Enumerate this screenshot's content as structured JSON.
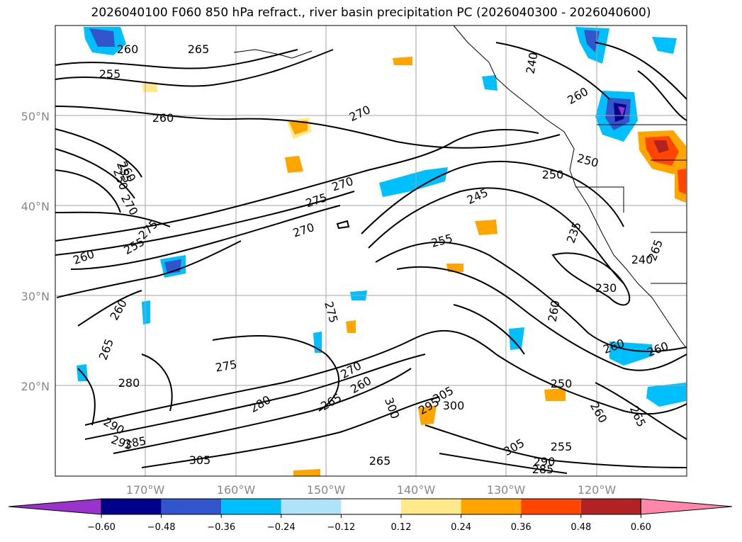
{
  "title": "2026040100 F060 850 hPa refract., river basin precipitation PC (2026040300 - 2026040600)",
  "map": {
    "lat_labels": [
      "50°N",
      "40°N",
      "30°N",
      "20°N"
    ],
    "lon_labels": [
      "170°W",
      "160°W",
      "150°W",
      "140°W",
      "130°W",
      "120°W"
    ],
    "contour_labels": [
      "260",
      "255",
      "260",
      "265",
      "270",
      "275",
      "270",
      "260",
      "255",
      "250",
      "260",
      "270",
      "275",
      "255",
      "260",
      "265",
      "280",
      "275",
      "270",
      "275",
      "270",
      "260",
      "265",
      "280",
      "290",
      "295",
      "285",
      "305",
      "300",
      "295",
      "305",
      "300",
      "305",
      "290",
      "285",
      "255",
      "265",
      "250",
      "260",
      "265",
      "245",
      "240",
      "260",
      "250",
      "235",
      "250",
      "240",
      "230",
      "260"
    ]
  },
  "colorbar": {
    "colors": [
      "#9933cc",
      "#00008b",
      "#3355cc",
      "#00bfff",
      "#aee3fa",
      "#ffffff",
      "#ffe98a",
      "#ffa500",
      "#ff4500",
      "#b22222",
      "#ff88aa"
    ],
    "ticks": [
      "−0.60",
      "−0.48",
      "−0.36",
      "−0.24",
      "−0.12",
      "0.12",
      "0.24",
      "0.36",
      "0.48",
      "0.60"
    ]
  }
}
